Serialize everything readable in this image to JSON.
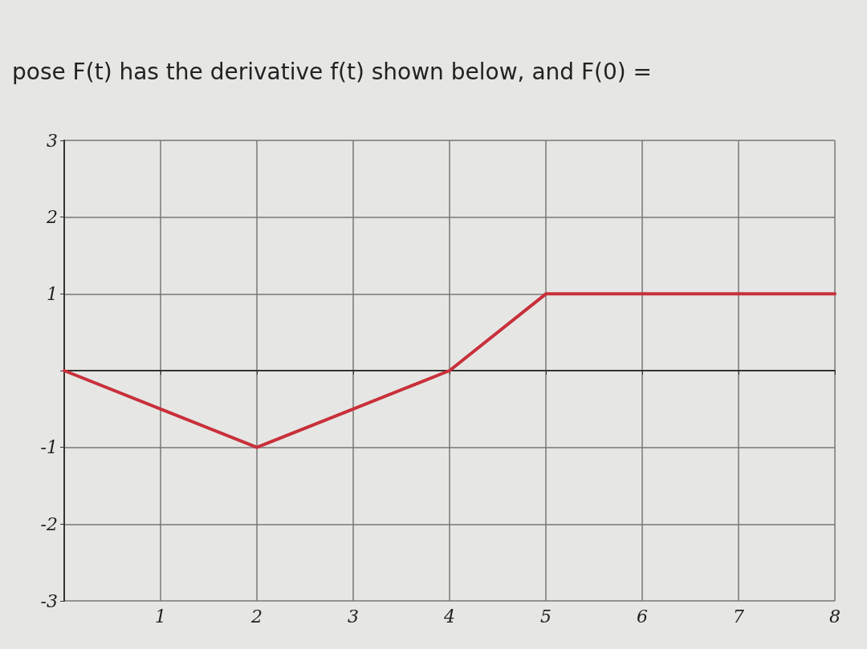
{
  "chart_data": {
    "type": "line",
    "title": "pose F(t) has the derivative f(t) shown below, and F(0) =",
    "x": [
      0,
      1,
      2,
      3,
      4,
      5,
      6,
      7,
      8
    ],
    "series": [
      {
        "color": "#c8303a",
        "values": [
          0,
          -0.5,
          -1,
          -0.5,
          0,
          1,
          1,
          1,
          1
        ]
      }
    ],
    "xlim": [
      0,
      8
    ],
    "xticks": [
      {
        "value": 0,
        "label": null
      },
      1,
      2,
      3,
      4,
      5,
      6,
      7,
      8
    ],
    "ylim": [
      -3,
      3
    ],
    "yticks": [
      -3,
      -2,
      -1,
      {
        "value": 0,
        "label": null
      },
      1,
      2,
      3
    ],
    "grid": true,
    "marker": "none",
    "line_style": "solid"
  }
}
